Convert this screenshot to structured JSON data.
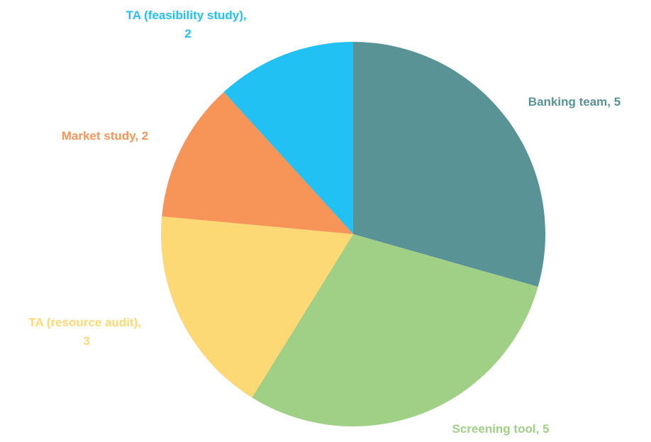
{
  "chart_data": {
    "type": "pie",
    "categories": [
      "Banking team",
      "Screening tool",
      "TA (resource audit)",
      "Market study",
      "TA (feasibility study)"
    ],
    "values": [
      5,
      5,
      3,
      2,
      2
    ],
    "colors": [
      "#5a9396",
      "#a0d086",
      "#fdd975",
      "#f79558",
      "#21c2f3"
    ],
    "label_separator": ", "
  }
}
